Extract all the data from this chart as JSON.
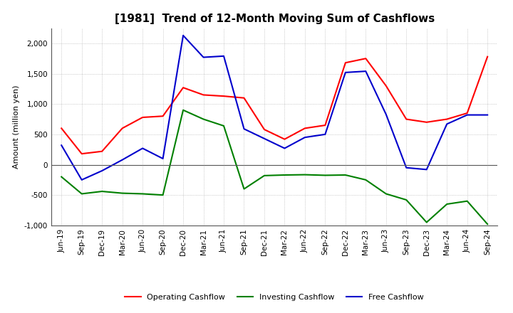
{
  "title": "[1981]  Trend of 12-Month Moving Sum of Cashflows",
  "ylabel": "Amount (million yen)",
  "ylim": [
    -1000,
    2250
  ],
  "yticks": [
    -1000,
    -500,
    0,
    500,
    1000,
    1500,
    2000
  ],
  "background_color": "#ffffff",
  "grid_color": "#aaaaaa",
  "title_fontsize": 11,
  "label_fontsize": 8,
  "tick_fontsize": 7.5,
  "x_labels": [
    "Jun-19",
    "Sep-19",
    "Dec-19",
    "Mar-20",
    "Jun-20",
    "Sep-20",
    "Dec-20",
    "Mar-21",
    "Jun-21",
    "Sep-21",
    "Dec-21",
    "Mar-22",
    "Jun-22",
    "Sep-22",
    "Dec-22",
    "Mar-23",
    "Jun-23",
    "Sep-23",
    "Dec-23",
    "Mar-24",
    "Jun-24",
    "Sep-24"
  ],
  "operating_cashflow": [
    600,
    180,
    220,
    600,
    780,
    800,
    1270,
    1150,
    1130,
    1100,
    580,
    420,
    600,
    650,
    1680,
    1750,
    1300,
    750,
    700,
    750,
    850,
    1780
  ],
  "investing_cashflow": [
    -200,
    -480,
    -440,
    -470,
    -480,
    -500,
    900,
    750,
    640,
    -400,
    -180,
    -170,
    -165,
    -175,
    -170,
    -250,
    -480,
    -580,
    -950,
    -650,
    -600,
    -980
  ],
  "free_cashflow": [
    320,
    -250,
    -100,
    80,
    270,
    100,
    2130,
    1770,
    1790,
    590,
    430,
    270,
    450,
    500,
    1520,
    1540,
    830,
    -50,
    -80,
    670,
    820,
    820
  ],
  "op_color": "#ff0000",
  "inv_color": "#008000",
  "free_color": "#0000cc",
  "legend_labels": [
    "Operating Cashflow",
    "Investing Cashflow",
    "Free Cashflow"
  ]
}
